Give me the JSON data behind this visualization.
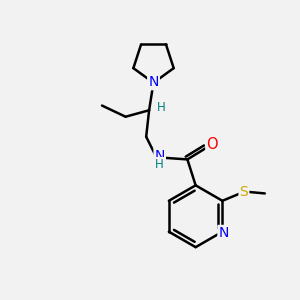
{
  "bg_color": "#f2f2f2",
  "atom_colors": {
    "N": "#0000ff",
    "O": "#ff0000",
    "S": "#ccaa00",
    "H_label": "#008080"
  },
  "bond_color": "#000000",
  "bond_width": 1.8,
  "figsize": [
    3.0,
    3.0
  ],
  "dpi": 100
}
